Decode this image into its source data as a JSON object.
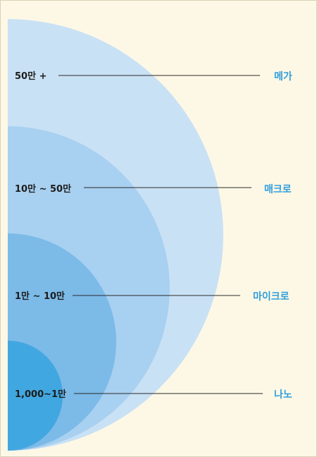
{
  "diagram": {
    "tiers": [
      {
        "range": "50만 +",
        "name": "메가",
        "color": "#c9e1f5"
      },
      {
        "range": "10만 ~ 50만",
        "name": "매크로",
        "color": "#a8d0f0"
      },
      {
        "range": "1만 ~ 10만",
        "name": "마이크로",
        "color": "#7cbae8"
      },
      {
        "range": "1,000~1만",
        "name": "나노",
        "color": "#41a7e1"
      }
    ],
    "colors": {
      "background": "#fdf8e6",
      "label_text": "#1d1d1d",
      "tier_name": "#2f9edb",
      "leader_line": "#2a2a2a"
    }
  }
}
